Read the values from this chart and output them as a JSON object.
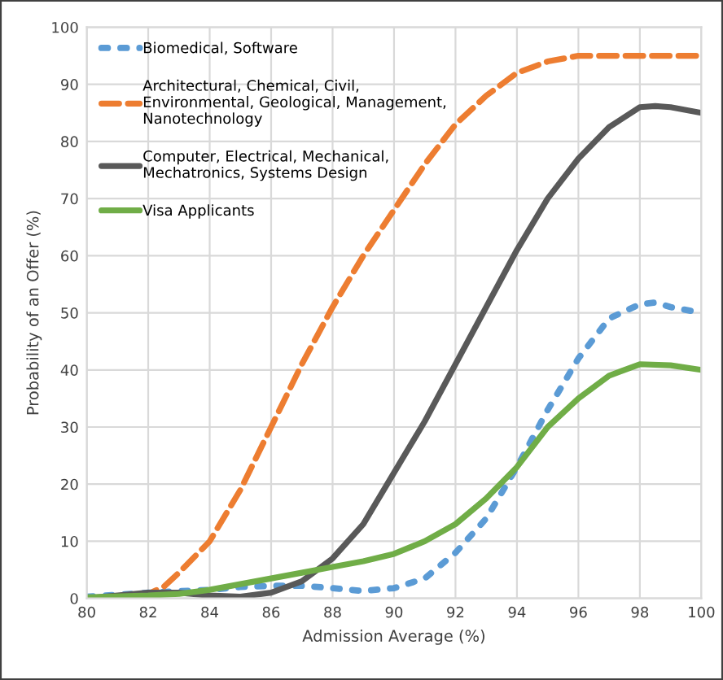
{
  "chart_data": {
    "type": "line",
    "xlabel": "Admission Average (%)",
    "ylabel": "Probability of an Offer (%)",
    "xlim": [
      80,
      100
    ],
    "xticks": [
      80,
      82,
      84,
      86,
      88,
      90,
      92,
      94,
      96,
      98,
      100
    ],
    "ylim": [
      0,
      100
    ],
    "yticks": [
      0,
      10,
      20,
      30,
      40,
      50,
      60,
      70,
      80,
      90,
      100
    ],
    "grid": true,
    "legend": "top left",
    "marker": "none",
    "series": [
      {
        "name": "Biomedical, Software",
        "color": "#5b9bd5",
        "line_style": "dotted",
        "x": [
          80,
          82,
          84,
          85,
          86,
          87,
          88,
          89,
          90,
          91,
          92,
          93,
          94,
          95,
          96,
          97,
          98,
          98.5,
          99,
          100
        ],
        "values": [
          0.3,
          1,
          1.5,
          2,
          2.2,
          2.2,
          1.8,
          1.3,
          1.8,
          3.5,
          8,
          14,
          23,
          33,
          42,
          49,
          51.5,
          51.8,
          51,
          50
        ]
      },
      {
        "name": "Architectural, Chemical, Civil,\nEnvironmental, Geological, Management,\nNanotechnology",
        "color": "#ed7d31",
        "line_style": "dashed",
        "x": [
          80,
          81,
          82,
          82.5,
          83,
          84,
          85,
          86,
          87,
          88,
          89,
          90,
          91,
          92,
          93,
          94,
          95,
          96,
          97,
          98,
          99,
          100
        ],
        "values": [
          0,
          0.3,
          0.8,
          2,
          4.5,
          10,
          19,
          30,
          41,
          51,
          60,
          68,
          76,
          83,
          88,
          92,
          94,
          95,
          95,
          95,
          95,
          95
        ]
      },
      {
        "name": "Computer, Electrical, Mechanical,\nMechatronics, Systems Design",
        "color": "#595959",
        "line_style": "solid",
        "x": [
          80,
          81,
          82,
          83,
          84,
          85,
          86,
          87,
          88,
          89,
          90,
          91,
          92,
          93,
          94,
          95,
          96,
          97,
          98,
          98.5,
          99,
          100
        ],
        "values": [
          0,
          0.5,
          1,
          1,
          0.5,
          0.3,
          1,
          3,
          7,
          13,
          22,
          31,
          41,
          51,
          61,
          70,
          77,
          82.5,
          86,
          86.2,
          86,
          85
        ]
      },
      {
        "name": "Visa Applicants",
        "color": "#70ad47",
        "line_style": "solid",
        "x": [
          80,
          82,
          83,
          84,
          85,
          86,
          87,
          88,
          89,
          90,
          91,
          92,
          93,
          94,
          95,
          96,
          97,
          98,
          99,
          100
        ],
        "values": [
          0.2,
          0.5,
          0.8,
          1.5,
          2.5,
          3.5,
          4.5,
          5.5,
          6.5,
          7.8,
          10,
          13,
          17.5,
          23,
          30,
          35,
          39,
          41,
          40.8,
          40
        ]
      }
    ]
  }
}
